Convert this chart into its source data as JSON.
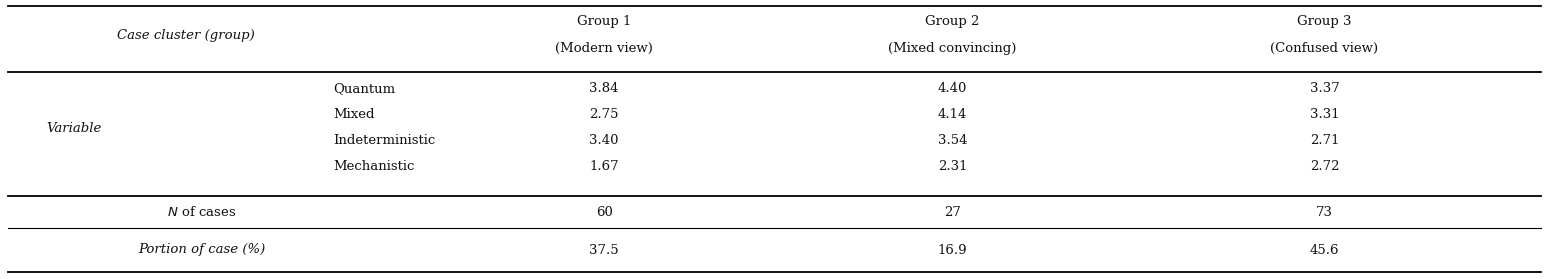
{
  "col_header_label": "Case cluster (group)",
  "col_headers": [
    [
      "Group 1",
      "(Modern view)"
    ],
    [
      "Group 2",
      "(Mixed convincing)"
    ],
    [
      "Group 3",
      "(Confused view)"
    ]
  ],
  "row_group_label": "Variable",
  "variables": [
    "Quantum",
    "Mixed",
    "Indeterministic",
    "Mechanistic"
  ],
  "data": [
    [
      "3.84",
      "4.40",
      "3.37"
    ],
    [
      "2.75",
      "4.14",
      "3.31"
    ],
    [
      "3.40",
      "3.54",
      "2.71"
    ],
    [
      "1.67",
      "2.31",
      "2.72"
    ]
  ],
  "n_of_cases_label": "N of cases",
  "n_of_cases": [
    "60",
    "27",
    "73"
  ],
  "portion_label": "Portion of case (%)",
  "portion_of_case": [
    "37.5",
    "16.9",
    "45.6"
  ],
  "bg_color": "#ffffff",
  "font_size": 9.5,
  "figsize": [
    15.49,
    2.79
  ],
  "dpi": 100
}
